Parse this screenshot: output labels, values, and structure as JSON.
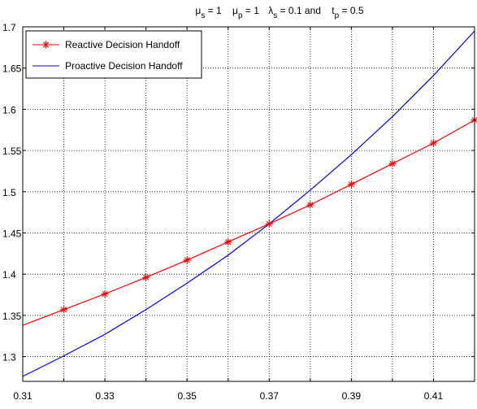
{
  "chart_data": {
    "type": "line",
    "title": "μs = 1   μp = 1   λs = 0.1 and   tp = 0.5",
    "title_parts": {
      "mu_s_sym": "μ",
      "mu_s_sub": "s",
      "mu_s_val": " = 1",
      "mu_p_sym": "μ",
      "mu_p_sub": "p",
      "mu_p_val": " = 1",
      "lambda_s_sym": "λ",
      "lambda_s_sub": "s",
      "lambda_s_val": " = 0.1 and",
      "t_p_sym": "t",
      "t_p_sub": "p",
      "t_p_val": " = 0.5"
    },
    "xlabel": "",
    "ylabel": "",
    "xlim": [
      0.31,
      0.42
    ],
    "ylim": [
      1.27,
      1.7
    ],
    "x_ticks": [
      0.31,
      0.32,
      0.33,
      0.34,
      0.35,
      0.36,
      0.37,
      0.38,
      0.39,
      0.4,
      0.41
    ],
    "x_tick_labels": [
      "0.31",
      "",
      "0.33",
      "",
      "0.35",
      "",
      "0.37",
      "",
      "0.39",
      "",
      "0.41"
    ],
    "y_ticks": [
      1.3,
      1.35,
      1.4,
      1.45,
      1.5,
      1.55,
      1.6,
      1.65,
      1.7
    ],
    "y_tick_labels": [
      "1.3",
      "1.35",
      "1.4",
      "1.45",
      "1.5",
      "1.55",
      "1.6",
      "1.65",
      "1.7"
    ],
    "grid": true,
    "legend_position": "top-left",
    "series": [
      {
        "name": "Reactive Decision Handoff",
        "color": "#ff0000",
        "marker": "asterisk",
        "x": [
          0.31,
          0.32,
          0.33,
          0.34,
          0.35,
          0.36,
          0.37,
          0.38,
          0.39,
          0.4,
          0.41,
          0.42
        ],
        "y": [
          1.338,
          1.357,
          1.376,
          1.396,
          1.417,
          1.439,
          1.461,
          1.484,
          1.509,
          1.534,
          1.559,
          1.587
        ],
        "marker_x": [
          0.32,
          0.33,
          0.34,
          0.35,
          0.36,
          0.37,
          0.38,
          0.39,
          0.4,
          0.41,
          0.42
        ],
        "marker_y": [
          1.357,
          1.376,
          1.396,
          1.417,
          1.439,
          1.461,
          1.484,
          1.509,
          1.534,
          1.559,
          1.587
        ]
      },
      {
        "name": "Proactive Decision Handoff",
        "color": "#0000ff",
        "marker": "none",
        "x": [
          0.31,
          0.32,
          0.33,
          0.34,
          0.35,
          0.36,
          0.37,
          0.38,
          0.39,
          0.4,
          0.41,
          0.42
        ],
        "y": [
          1.276,
          1.301,
          1.327,
          1.357,
          1.389,
          1.423,
          1.461,
          1.502,
          1.545,
          1.591,
          1.641,
          1.695
        ]
      }
    ]
  }
}
